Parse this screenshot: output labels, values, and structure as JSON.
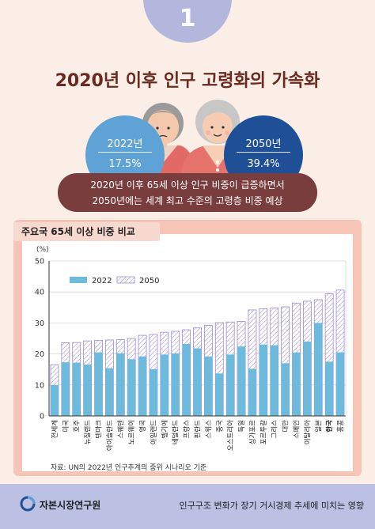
{
  "badge": "1",
  "headline": "2020년 이후 인구 고령화의 가속화",
  "stats": {
    "left": {
      "year": "2022년",
      "value": "17.5%"
    },
    "right": {
      "year": "2050년",
      "value": "39.4%"
    }
  },
  "banner": {
    "line1": "2020년 이후 65세 이상 인구 비중이 급증하면서",
    "line2": "2050년에는 세계 최고 수준의 고령층 비중 예상"
  },
  "chart_title": "주요국 65세 이상 비중 비교",
  "chart_data": {
    "type": "bar",
    "ylabel": "(%)",
    "ylim": [
      0,
      50
    ],
    "yticks": [
      0,
      10,
      20,
      30,
      40,
      50
    ],
    "grid": true,
    "legend_position": "top-left",
    "categories": [
      "전세계",
      "미국",
      "호주",
      "뉴질랜드",
      "덴마크",
      "아이슬란드",
      "스웨덴",
      "노르웨이",
      "영국",
      "아일랜드",
      "벨기에",
      "네덜란드",
      "프랑스",
      "핀란드",
      "스위스",
      "중국",
      "오스트리아",
      "독일",
      "싱가포르",
      "포르투갈",
      "그리스",
      "대만",
      "스페인",
      "이탈리아",
      "일본",
      "한국",
      "홍콩"
    ],
    "series": [
      {
        "name": "2022",
        "values": [
          10,
          17.3,
          17.2,
          16.6,
          20.5,
          15.4,
          20.2,
          18.3,
          19.2,
          15.1,
          19.8,
          20.2,
          23.2,
          21.8,
          19.2,
          13.7,
          19.8,
          22.4,
          15.2,
          23,
          22.8,
          17,
          20.5,
          24,
          30,
          17.5,
          20.5
        ]
      },
      {
        "name": "2050",
        "values": [
          16.5,
          23.6,
          23.7,
          24.2,
          24.4,
          24.5,
          24.6,
          25,
          26,
          26.3,
          27,
          27.3,
          27.8,
          28.4,
          29.2,
          30.1,
          30.3,
          30.5,
          34.2,
          34.6,
          34.8,
          35.2,
          36.4,
          37,
          37.5,
          39.4,
          40.6
        ]
      }
    ],
    "highlight_category": "한국",
    "colors": {
      "2022": "#6cbbdd",
      "2050_stroke": "#9b8ad2",
      "axis": "#333333",
      "grid": "#d6d6d6"
    }
  },
  "source_note": "자료: UN의 2022년 인구추계의 중위 시나리오 기준",
  "footer": {
    "org": "자본시장연구원",
    "note": "인구구조 변화가 장기 거시경제 추세에 미치는 영향"
  }
}
